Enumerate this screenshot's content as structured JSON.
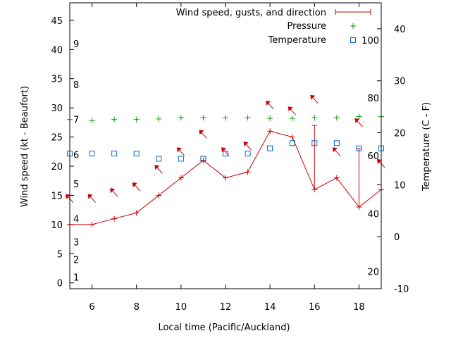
{
  "chart_data": {
    "type": "line",
    "xlabel": "Local time (Pacific/Auckland)",
    "ylabel": "Wind speed (kt - Beaufort)",
    "y2label": "Temperature (C - F)",
    "xlim": [
      5,
      19
    ],
    "ylim": [
      -1,
      48
    ],
    "y2lim": [
      -10,
      45
    ],
    "xticks": [
      6,
      8,
      10,
      12,
      14,
      16,
      18
    ],
    "yticks": [
      0,
      5,
      10,
      15,
      20,
      25,
      30,
      35,
      40,
      45
    ],
    "y2ticks": [
      -10,
      0,
      10,
      20,
      30,
      40
    ],
    "beaufort_marks": [
      {
        "label": "1",
        "y": 1
      },
      {
        "label": "2",
        "y": 4
      },
      {
        "label": "3",
        "y": 7
      },
      {
        "label": "4",
        "y": 11
      },
      {
        "label": "5",
        "y": 17
      },
      {
        "label": "6",
        "y": 22
      },
      {
        "label": "7",
        "y": 28
      },
      {
        "label": "8",
        "y": 34
      },
      {
        "label": "9",
        "y": 41
      }
    ],
    "fahrenheit_marks": [
      {
        "label": "20",
        "y2": -6.7
      },
      {
        "label": "40",
        "y2": 4.4
      },
      {
        "label": "60",
        "y2": 15.6
      },
      {
        "label": "80",
        "y2": 26.7
      },
      {
        "label": "100",
        "y2": 37.8
      }
    ],
    "legend_position": "top-right",
    "series": [
      {
        "name": "Wind speed, gusts, and direction",
        "color": "#cc0000",
        "x": [
          5,
          6,
          7,
          8,
          9,
          10,
          11,
          12,
          13,
          14,
          15,
          16,
          17,
          18,
          19
        ],
        "values": [
          10,
          10,
          11,
          12,
          15,
          18,
          21,
          18,
          19,
          26,
          25,
          16,
          18,
          13,
          16
        ],
        "gusts": [
          10,
          10,
          11,
          12,
          15,
          18,
          21,
          18,
          19,
          26,
          25,
          27,
          18,
          23,
          16
        ],
        "direction_markers": [
          {
            "x": 5,
            "y": 14.5
          },
          {
            "x": 6,
            "y": 14.5
          },
          {
            "x": 7,
            "y": 15.5
          },
          {
            "x": 8,
            "y": 16.5
          },
          {
            "x": 9,
            "y": 19.5
          },
          {
            "x": 10,
            "y": 22.5
          },
          {
            "x": 11,
            "y": 25.5
          },
          {
            "x": 12,
            "y": 22.5
          },
          {
            "x": 13,
            "y": 23.5
          },
          {
            "x": 14,
            "y": 30.5
          },
          {
            "x": 15,
            "y": 29.5
          },
          {
            "x": 16,
            "y": 31.5
          },
          {
            "x": 17,
            "y": 22.5
          },
          {
            "x": 18,
            "y": 27.5
          },
          {
            "x": 19,
            "y": 20.5
          }
        ]
      },
      {
        "name": "Pressure",
        "color": "#00a000",
        "x": [
          5,
          6,
          7,
          8,
          9,
          10,
          11,
          12,
          13,
          14,
          15,
          16,
          17,
          18,
          19
        ],
        "values": [
          28,
          27.8,
          28,
          28,
          28.1,
          28.3,
          28.3,
          28.3,
          28.3,
          28.2,
          28.2,
          28.3,
          28.3,
          28.5,
          28.5
        ]
      },
      {
        "name": "Temperature",
        "color": "#0066cc",
        "x": [
          5,
          6,
          7,
          8,
          9,
          10,
          11,
          12,
          13,
          14,
          15,
          16,
          17,
          18,
          19
        ],
        "values": [
          16,
          16,
          16,
          16,
          15,
          15,
          15,
          16,
          16,
          17,
          18,
          18,
          18,
          17,
          17
        ]
      }
    ]
  }
}
